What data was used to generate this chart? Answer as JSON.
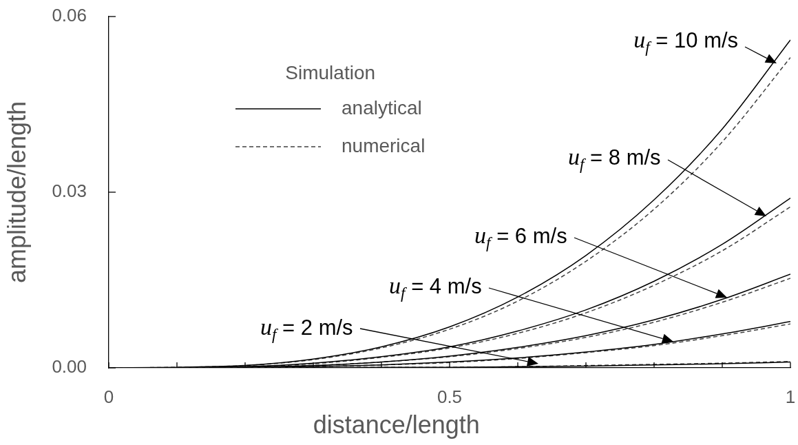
{
  "chart_data": {
    "type": "line",
    "xlabel": "distance/length",
    "ylabel": "amplitude/length",
    "legend_title": "Simulation",
    "legend": "top left",
    "marker": "none",
    "xlim": [
      0,
      1
    ],
    "xticks": [
      0,
      {
        "value": 0.1,
        "label": null
      },
      {
        "value": 0.2,
        "label": null
      },
      {
        "value": 0.3,
        "label": null
      },
      {
        "value": 0.4,
        "label": null
      },
      0.5,
      {
        "value": 0.6,
        "label": null
      },
      {
        "value": 0.7,
        "label": null
      },
      {
        "value": 0.8,
        "label": null
      },
      {
        "value": 0.9,
        "label": null
      },
      1
    ],
    "ylim": [
      0,
      0.06
    ],
    "yticks": [
      {
        "value": 0,
        "label": "0.00"
      },
      0.03,
      0.06
    ],
    "x": [
      0,
      0.1,
      0.2,
      0.3,
      0.4,
      0.5,
      0.6,
      0.7,
      0.8,
      0.9,
      1
    ],
    "series": [
      {
        "name": "analytical",
        "color": "#000000",
        "line_style": "solid",
        "values": [
          0,
          0.0001,
          0.0004,
          0.0015,
          0.0036,
          0.007,
          0.0121,
          0.0192,
          0.0287,
          0.0408,
          0.056
        ]
      },
      {
        "name": "numerical",
        "color": "#404040",
        "line_style": "dashed",
        "values": [
          0,
          0.0001,
          0.0004,
          0.0014,
          0.0034,
          0.0066,
          0.0114,
          0.0182,
          0.0271,
          0.0386,
          0.053
        ]
      },
      {
        "color": "#000000",
        "line_style": "solid",
        "values": [
          0,
          0,
          0.0002,
          0.0008,
          0.0019,
          0.0036,
          0.0063,
          0.0099,
          0.0148,
          0.0211,
          0.029
        ]
      },
      {
        "color": "#404040",
        "line_style": "dashed",
        "values": [
          0,
          0,
          0.0002,
          0.0007,
          0.0018,
          0.0034,
          0.0059,
          0.0094,
          0.0141,
          0.02,
          0.0275
        ]
      },
      {
        "color": "#000000",
        "line_style": "solid",
        "values": [
          0,
          0,
          0.0001,
          0.0004,
          0.001,
          0.002,
          0.0035,
          0.0055,
          0.0082,
          0.0117,
          0.016
        ]
      },
      {
        "color": "#404040",
        "line_style": "dashed",
        "values": [
          0,
          0,
          0.0001,
          0.0004,
          0.001,
          0.0019,
          0.0033,
          0.0052,
          0.0078,
          0.0112,
          0.0153
        ]
      },
      {
        "color": "#000000",
        "line_style": "solid",
        "values": [
          0,
          0,
          0.0001,
          0.0002,
          0.0005,
          0.001,
          0.0017,
          0.0027,
          0.004,
          0.0058,
          0.0079
        ]
      },
      {
        "color": "#404040",
        "line_style": "dashed",
        "values": [
          0,
          0,
          0.0001,
          0.0002,
          0.0005,
          0.0009,
          0.0016,
          0.0026,
          0.0038,
          0.0055,
          0.0075
        ]
      },
      {
        "color": "#000000",
        "line_style": "solid",
        "values": [
          0,
          0,
          0,
          0,
          0.0001,
          0.0001,
          0.0002,
          0.0003,
          0.0005,
          0.0007,
          0.001
        ]
      },
      {
        "color": "#404040",
        "line_style": "dashed",
        "values": [
          0,
          0,
          0,
          0,
          0.0001,
          0.0001,
          0.0002,
          0.0004,
          0.0006,
          0.0008,
          0.0011
        ]
      }
    ],
    "annotations": [
      {
        "text": "u$_{f}$ = 10 m/s",
        "x": 0.98,
        "y": 0.052
      },
      "u$_{f}$ = 8 m/s",
      "u$_{f}$ = 6 m/s",
      "u$_{f}$ = 4 m/s",
      "u$_{f}$ = 2 m/s"
    ]
  }
}
